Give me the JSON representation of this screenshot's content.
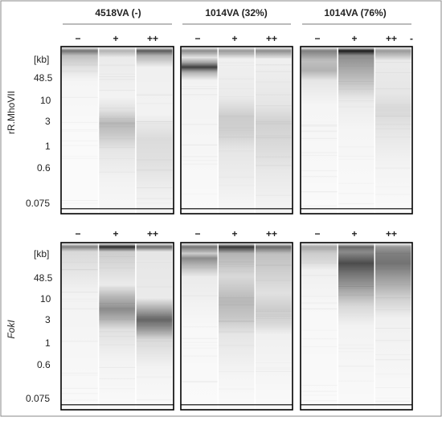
{
  "groups": [
    {
      "label": "4518VA (-)"
    },
    {
      "label": "1014VA (32%)"
    },
    {
      "label": "1014VA (76%)"
    }
  ],
  "lanes": [
    "−",
    "+",
    "++"
  ],
  "extra_dash": "-",
  "panels": [
    {
      "enzyme_label": "rR.MhoVII",
      "unit_label": "[kb]",
      "markers": [
        "48.5",
        "10",
        "3",
        "1",
        "0.6",
        "0.075"
      ]
    },
    {
      "enzyme_label": "FokI",
      "unit_label": "[kb]",
      "markers": [
        "48.5",
        "10",
        "3",
        "1",
        "0.6",
        "0.075"
      ]
    }
  ],
  "colors": {
    "frame": "#000000",
    "outer_border": "#8a8a8a",
    "header_rule": "#777777",
    "band": "#000000"
  }
}
